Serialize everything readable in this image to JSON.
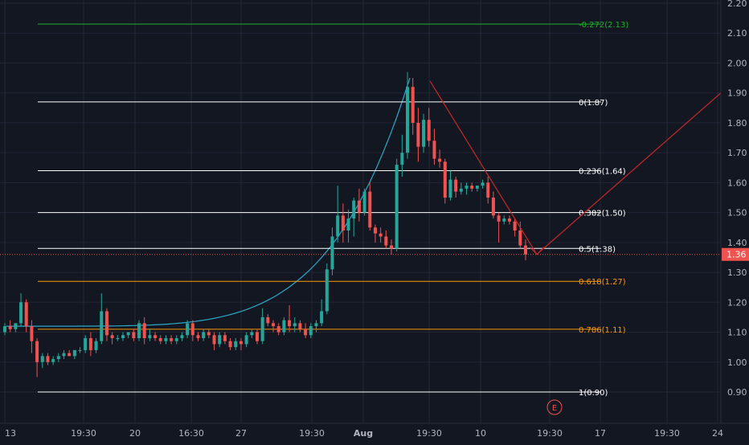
{
  "chart_data": {
    "type": "candlestick",
    "y_axis": {
      "ylim": [
        0.855,
        2.205
      ],
      "ticks": [
        "0.90",
        "1.00",
        "1.10",
        "1.20",
        "1.30",
        "1.40",
        "1.50",
        "1.60",
        "1.70",
        "1.80",
        "1.90",
        "2.00",
        "2.10",
        "2.20"
      ],
      "tick_values": [
        0.9,
        1.0,
        1.1,
        1.2,
        1.3,
        1.4,
        1.5,
        1.6,
        1.7,
        1.8,
        1.9,
        2.0,
        2.1,
        2.2
      ]
    },
    "x_axis": {
      "labels": [
        "13",
        "19:30",
        "20",
        "16:30",
        "27",
        "19:30",
        "Aug",
        "19:30",
        "10",
        "19:30",
        "17",
        "19:30",
        "24"
      ]
    },
    "current_price": {
      "label": "1.36",
      "value": 1.36
    },
    "fib_levels": [
      {
        "label": "-0.272(2.13)",
        "value": 2.13,
        "color": "#1db02b"
      },
      {
        "label": "0(1.87)",
        "value": 1.87,
        "color": "#ffffff"
      },
      {
        "label": "0.236(1.64)",
        "value": 1.64,
        "color": "#ffffff"
      },
      {
        "label": "0.382(1.50)",
        "value": 1.5,
        "color": "#ffffff"
      },
      {
        "label": "0.5(1.38)",
        "value": 1.38,
        "color": "#ffffff"
      },
      {
        "label": "0.618(1.27)",
        "value": 1.27,
        "color": "#ff9800"
      },
      {
        "label": "0.786(1.11)",
        "value": 1.11,
        "color": "#ff9800"
      },
      {
        "label": "1(0.90)",
        "value": 0.9,
        "color": "#ffffff"
      }
    ],
    "earnings_marker": {
      "label": "E"
    },
    "colors": {
      "background": "#131722",
      "grid": "#232735",
      "up": "#26a69a",
      "down": "#ef5350",
      "curve": "#2aa9c9",
      "trendline": "#c62828",
      "axis_text": "#b2b5be",
      "price_tag": "#ef5350"
    },
    "candles": [
      [
        1.1,
        1.13,
        1.09,
        1.12
      ],
      [
        1.12,
        1.14,
        1.1,
        1.11
      ],
      [
        1.11,
        1.13,
        1.1,
        1.13
      ],
      [
        1.13,
        1.23,
        1.12,
        1.2
      ],
      [
        1.2,
        1.21,
        1.1,
        1.12
      ],
      [
        1.12,
        1.14,
        1.03,
        1.07
      ],
      [
        1.07,
        1.08,
        0.95,
        1.0
      ],
      [
        1.0,
        1.03,
        0.98,
        1.02
      ],
      [
        1.02,
        1.03,
        0.99,
        1.0
      ],
      [
        1.0,
        1.02,
        0.99,
        1.01
      ],
      [
        1.01,
        1.03,
        1.0,
        1.02
      ],
      [
        1.02,
        1.04,
        1.01,
        1.03
      ],
      [
        1.03,
        1.04,
        1.02,
        1.02
      ],
      [
        1.02,
        1.04,
        1.01,
        1.04
      ],
      [
        1.04,
        1.05,
        1.03,
        1.04
      ],
      [
        1.04,
        1.09,
        1.03,
        1.08
      ],
      [
        1.08,
        1.1,
        1.02,
        1.04
      ],
      [
        1.04,
        1.08,
        1.03,
        1.07
      ],
      [
        1.07,
        1.23,
        1.06,
        1.17
      ],
      [
        1.17,
        1.18,
        1.07,
        1.09
      ],
      [
        1.09,
        1.1,
        1.06,
        1.08
      ],
      [
        1.08,
        1.09,
        1.07,
        1.08
      ],
      [
        1.08,
        1.1,
        1.07,
        1.09
      ],
      [
        1.09,
        1.1,
        1.08,
        1.1
      ],
      [
        1.1,
        1.11,
        1.07,
        1.08
      ],
      [
        1.08,
        1.14,
        1.07,
        1.13
      ],
      [
        1.13,
        1.15,
        1.06,
        1.08
      ],
      [
        1.08,
        1.11,
        1.07,
        1.09
      ],
      [
        1.09,
        1.1,
        1.07,
        1.08
      ],
      [
        1.08,
        1.09,
        1.06,
        1.07
      ],
      [
        1.07,
        1.09,
        1.06,
        1.08
      ],
      [
        1.08,
        1.09,
        1.06,
        1.07
      ],
      [
        1.07,
        1.09,
        1.06,
        1.08
      ],
      [
        1.08,
        1.1,
        1.07,
        1.09
      ],
      [
        1.09,
        1.14,
        1.08,
        1.13
      ],
      [
        1.13,
        1.14,
        1.07,
        1.09
      ],
      [
        1.09,
        1.1,
        1.07,
        1.08
      ],
      [
        1.08,
        1.11,
        1.07,
        1.1
      ],
      [
        1.1,
        1.11,
        1.08,
        1.09
      ],
      [
        1.09,
        1.1,
        1.04,
        1.06
      ],
      [
        1.06,
        1.1,
        1.05,
        1.09
      ],
      [
        1.09,
        1.1,
        1.06,
        1.07
      ],
      [
        1.07,
        1.08,
        1.04,
        1.05
      ],
      [
        1.05,
        1.08,
        1.04,
        1.07
      ],
      [
        1.07,
        1.08,
        1.04,
        1.06
      ],
      [
        1.06,
        1.1,
        1.05,
        1.09
      ],
      [
        1.09,
        1.11,
        1.08,
        1.1
      ],
      [
        1.1,
        1.11,
        1.06,
        1.07
      ],
      [
        1.07,
        1.18,
        1.06,
        1.15
      ],
      [
        1.15,
        1.16,
        1.12,
        1.13
      ],
      [
        1.13,
        1.14,
        1.1,
        1.12
      ],
      [
        1.12,
        1.13,
        1.09,
        1.1
      ],
      [
        1.1,
        1.15,
        1.09,
        1.14
      ],
      [
        1.14,
        1.19,
        1.1,
        1.12
      ],
      [
        1.12,
        1.15,
        1.1,
        1.13
      ],
      [
        1.13,
        1.14,
        1.1,
        1.11
      ],
      [
        1.11,
        1.13,
        1.08,
        1.09
      ],
      [
        1.09,
        1.13,
        1.08,
        1.12
      ],
      [
        1.12,
        1.14,
        1.1,
        1.13
      ],
      [
        1.13,
        1.21,
        1.12,
        1.17
      ],
      [
        1.17,
        1.33,
        1.16,
        1.31
      ],
      [
        1.31,
        1.45,
        1.29,
        1.42
      ],
      [
        1.42,
        1.59,
        1.4,
        1.49
      ],
      [
        1.49,
        1.53,
        1.4,
        1.44
      ],
      [
        1.44,
        1.51,
        1.4,
        1.48
      ],
      [
        1.48,
        1.55,
        1.42,
        1.54
      ],
      [
        1.54,
        1.58,
        1.47,
        1.5
      ],
      [
        1.5,
        1.58,
        1.49,
        1.57
      ],
      [
        1.57,
        1.6,
        1.44,
        1.45
      ],
      [
        1.45,
        1.46,
        1.4,
        1.43
      ],
      [
        1.43,
        1.45,
        1.4,
        1.42
      ],
      [
        1.42,
        1.44,
        1.38,
        1.39
      ],
      [
        1.39,
        1.41,
        1.36,
        1.38
      ],
      [
        1.38,
        1.68,
        1.37,
        1.66
      ],
      [
        1.66,
        1.76,
        1.62,
        1.7
      ],
      [
        1.7,
        1.97,
        1.68,
        1.92
      ],
      [
        1.92,
        1.95,
        1.76,
        1.8
      ],
      [
        1.8,
        1.85,
        1.67,
        1.72
      ],
      [
        1.72,
        1.83,
        1.7,
        1.81
      ],
      [
        1.81,
        1.85,
        1.72,
        1.74
      ],
      [
        1.74,
        1.78,
        1.66,
        1.68
      ],
      [
        1.68,
        1.71,
        1.65,
        1.67
      ],
      [
        1.67,
        1.68,
        1.53,
        1.55
      ],
      [
        1.55,
        1.64,
        1.54,
        1.61
      ],
      [
        1.61,
        1.62,
        1.55,
        1.57
      ],
      [
        1.57,
        1.6,
        1.56,
        1.58
      ],
      [
        1.58,
        1.6,
        1.56,
        1.59
      ],
      [
        1.59,
        1.6,
        1.57,
        1.58
      ],
      [
        1.58,
        1.59,
        1.57,
        1.59
      ],
      [
        1.59,
        1.61,
        1.58,
        1.6
      ],
      [
        1.6,
        1.62,
        1.53,
        1.55
      ],
      [
        1.55,
        1.57,
        1.48,
        1.49
      ],
      [
        1.49,
        1.5,
        1.4,
        1.47
      ],
      [
        1.47,
        1.49,
        1.46,
        1.48
      ],
      [
        1.48,
        1.49,
        1.46,
        1.47
      ],
      [
        1.47,
        1.48,
        1.42,
        1.44
      ],
      [
        1.44,
        1.47,
        1.38,
        1.39
      ],
      [
        1.39,
        1.41,
        1.34,
        1.36
      ]
    ]
  }
}
